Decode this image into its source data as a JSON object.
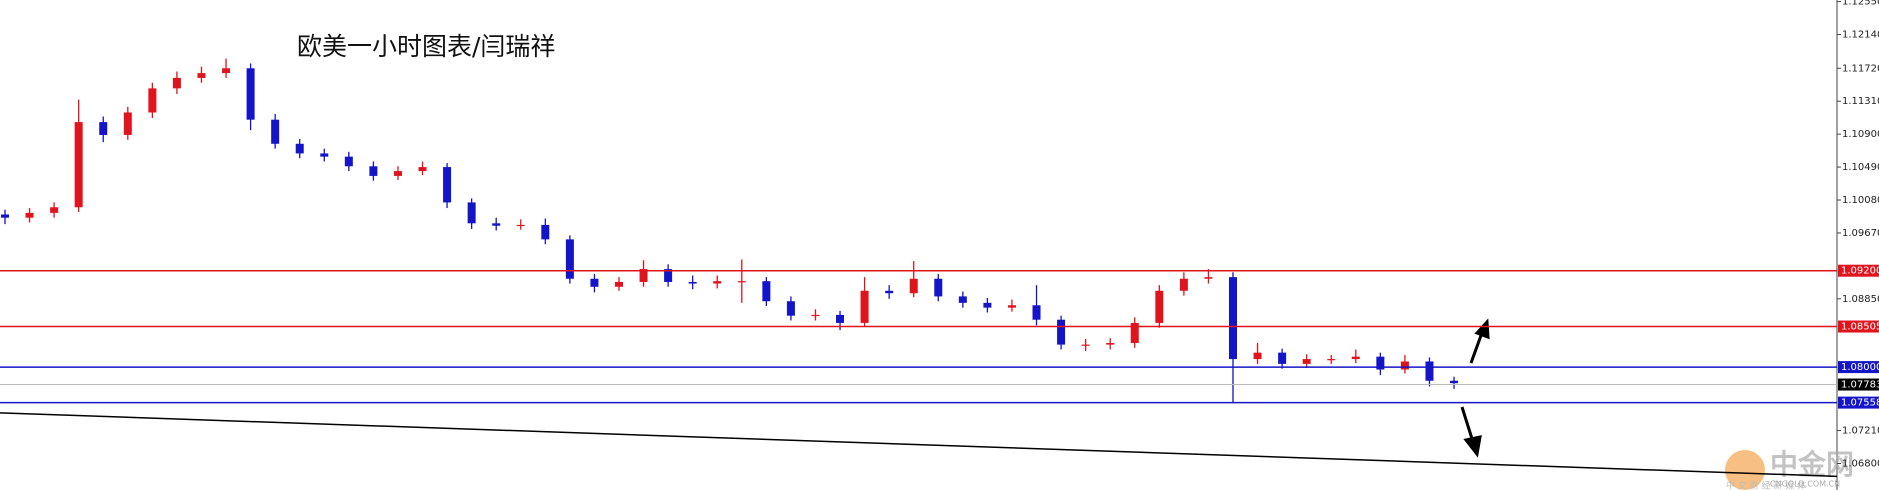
{
  "chart_data": {
    "type": "candlestick",
    "title": "欧美一小时图表/闫瑞祥",
    "open": [
      1.099,
      1.0986,
      1.0992,
      1.0999,
      1.1105,
      1.1089,
      1.1117,
      1.1147,
      1.116,
      1.1166,
      1.1172,
      1.1108,
      1.1078,
      1.1066,
      1.1062,
      1.105,
      1.1038,
      1.1044,
      1.1049,
      1.1005,
      1.0979,
      1.0976,
      1.0977,
      1.0959,
      1.091,
      1.09,
      1.0906,
      1.0922,
      1.0906,
      1.0904,
      1.0907,
      1.0907,
      1.0882,
      1.0864,
      1.0865,
      1.0855,
      1.0895,
      1.0892,
      1.091,
      1.0888,
      1.088,
      1.0874,
      1.0877,
      1.0859,
      1.0828,
      1.0828,
      1.083,
      1.0855,
      1.0895,
      1.091,
      1.0912,
      1.081,
      1.0818,
      1.0804,
      1.081,
      1.081,
      1.0813,
      1.0797,
      1.0807,
      1.0783
    ],
    "high": [
      1.0996,
      1.0998,
      1.1005,
      1.1133,
      1.1112,
      1.1124,
      1.1154,
      1.1168,
      1.1174,
      1.1184,
      1.1178,
      1.1115,
      1.1084,
      1.1072,
      1.1068,
      1.1056,
      1.105,
      1.1056,
      1.1054,
      1.101,
      1.0986,
      1.0984,
      1.0985,
      1.0964,
      1.0916,
      1.0912,
      1.0933,
      1.0928,
      1.0914,
      1.0914,
      1.0934,
      1.0912,
      1.0888,
      1.0872,
      1.087,
      1.0912,
      1.0902,
      1.0932,
      1.0916,
      1.0894,
      1.0886,
      1.0884,
      1.0902,
      1.0864,
      1.0835,
      1.0836,
      1.0862,
      1.0902,
      1.0918,
      1.0922,
      1.0918,
      1.083,
      1.0823,
      1.0816,
      1.0815,
      1.0822,
      1.0818,
      1.0815,
      1.0812,
      1.0788
    ],
    "low": [
      1.0978,
      1.098,
      1.0986,
      1.0993,
      1.108,
      1.1083,
      1.111,
      1.114,
      1.1154,
      1.116,
      1.1095,
      1.1072,
      1.106,
      1.1056,
      1.1044,
      1.1032,
      1.1033,
      1.1039,
      1.0998,
      1.0972,
      1.097,
      1.0971,
      1.0953,
      1.0904,
      1.0893,
      1.0895,
      1.09,
      1.09,
      1.0897,
      1.0898,
      1.088,
      1.0876,
      1.0858,
      1.0858,
      1.0846,
      1.085,
      1.0885,
      1.0887,
      1.0882,
      1.0874,
      1.0868,
      1.0869,
      1.0852,
      1.0822,
      1.082,
      1.0822,
      1.0824,
      1.0849,
      1.0889,
      1.0904,
      1.0756,
      1.0804,
      1.0798,
      1.0799,
      1.0804,
      1.0805,
      1.079,
      1.0792,
      1.0776,
      1.0773
    ],
    "close": [
      1.0986,
      1.0992,
      1.0999,
      1.1105,
      1.1089,
      1.1117,
      1.1147,
      1.116,
      1.1166,
      1.1172,
      1.1108,
      1.1078,
      1.1066,
      1.1062,
      1.105,
      1.1038,
      1.1044,
      1.1049,
      1.1005,
      1.0979,
      1.0976,
      1.0977,
      1.0959,
      1.091,
      1.09,
      1.0906,
      1.0922,
      1.0906,
      1.0904,
      1.0907,
      1.0907,
      1.0882,
      1.0864,
      1.0865,
      1.0855,
      1.0895,
      1.0892,
      1.091,
      1.0888,
      1.088,
      1.0874,
      1.0877,
      1.0859,
      1.0828,
      1.0828,
      1.083,
      1.0855,
      1.0895,
      1.091,
      1.0912,
      1.081,
      1.0818,
      1.0804,
      1.081,
      1.081,
      1.0813,
      1.0797,
      1.0807,
      1.0783,
      1.078
    ],
    "up_color": "#e0141c",
    "down_color": "#1414c8",
    "ylim": [
      1.0647,
      1.1257
    ],
    "yticks": [
      {
        "value": 1.1255,
        "label": "1.12550"
      },
      {
        "value": 1.1214,
        "label": "1.12140"
      },
      {
        "value": 1.1172,
        "label": "1.11720"
      },
      {
        "value": 1.1131,
        "label": "1.11310"
      },
      {
        "value": 1.109,
        "label": "1.10900"
      },
      {
        "value": 1.1049,
        "label": "1.10490"
      },
      {
        "value": 1.1008,
        "label": "1.10080"
      },
      {
        "value": 1.0967,
        "label": "1.09670"
      },
      {
        "value": 1.0885,
        "label": "1.08850"
      },
      {
        "value": 1.0721,
        "label": "1.07210"
      },
      {
        "value": 1.068,
        "label": "1.06800"
      }
    ],
    "levels": [
      {
        "value": 1.092,
        "label": "1.09200",
        "color": "#e0141c"
      },
      {
        "value": 1.08505,
        "label": "1.08505",
        "color": "#e0141c"
      },
      {
        "value": 1.08,
        "label": "1.08000",
        "color": "#1414c8"
      },
      {
        "value": 1.07558,
        "label": "1.07558",
        "color": "#1414c8"
      },
      {
        "value": 1.07783,
        "label": "1.07783",
        "color": "#000000"
      }
    ],
    "trendline": [
      1.0743,
      1.0664
    ],
    "watermark": {
      "name": "中金网",
      "site": "CNGOLD.COM.CN",
      "slogan": "中 文 财 经 新 媒 体"
    }
  }
}
